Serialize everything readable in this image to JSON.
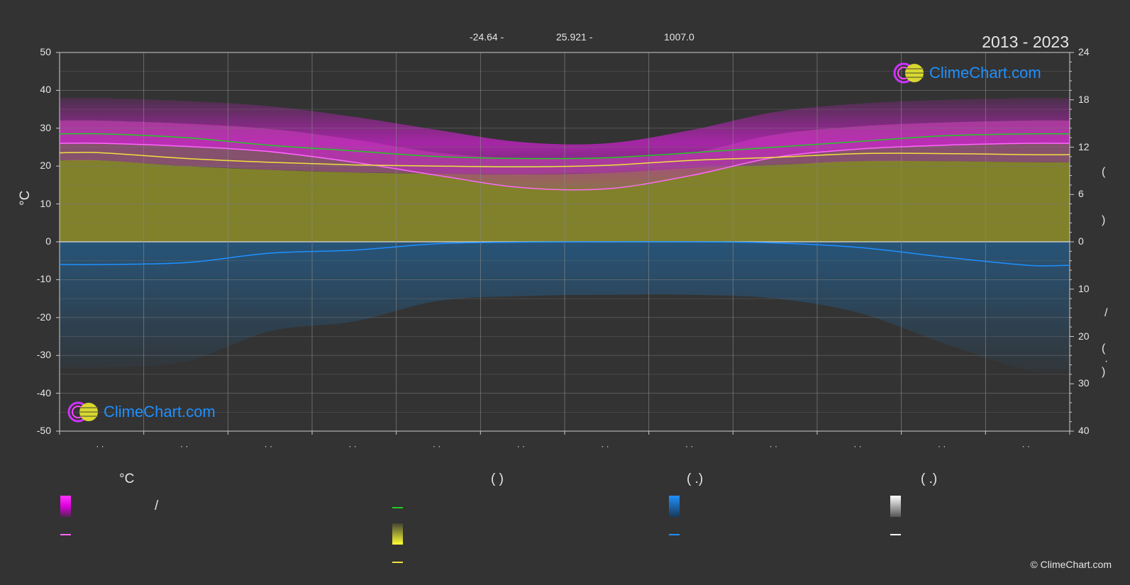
{
  "header": {
    "values": [
      "-24.64 -",
      "25.921 -",
      "1007.0"
    ],
    "period": "2013 - 2023"
  },
  "chart_data": {
    "type": "area",
    "x_months": 12,
    "y_left_ticks": [
      50,
      40,
      30,
      20,
      10,
      0,
      -10,
      -20,
      -30,
      -40,
      -50
    ],
    "y_left_label": "°C",
    "y_right_top_ticks": [
      24,
      18,
      12,
      6,
      0
    ],
    "y_right_bottom_ticks": [
      10,
      20,
      30,
      40
    ],
    "ylim": [
      -50,
      50
    ],
    "month_labels": [
      "· ·",
      "· ·",
      "· ·",
      "· ·",
      "· ·",
      "· ·",
      "· ·",
      "· ·",
      "· ·",
      "· ·",
      "· ·",
      "· ·"
    ],
    "series": [
      {
        "name": "",
        "color": "#22cc22",
        "values": [
          28.5,
          27.5,
          25.5,
          24.0,
          22.5,
          22.0,
          22.2,
          23.5,
          25.0,
          26.5,
          28.0,
          28.5
        ]
      },
      {
        "name": "",
        "color": "#ff66ff",
        "values": [
          26.0,
          25.2,
          23.8,
          21.0,
          17.5,
          14.3,
          14.0,
          17.5,
          22.3,
          24.5,
          25.5,
          26.0
        ]
      },
      {
        "name": "",
        "color": "#f0e040",
        "values": [
          23.5,
          22.0,
          21.0,
          20.3,
          20.0,
          19.8,
          20.2,
          21.5,
          22.3,
          23.3,
          23.3,
          23.0
        ]
      },
      {
        "name": "",
        "color": "#1e90ff",
        "values": [
          -6.0,
          -5.5,
          -3.0,
          -2.2,
          -0.5,
          -0.1,
          0.0,
          0.0,
          -0.3,
          -1.5,
          -4.0,
          -6.2
        ]
      }
    ]
  },
  "legend": {
    "temp_heading": "°C",
    "sun_heading": "(          )",
    "rain_heading": "(   .)",
    "snow_heading": "(   .)",
    "slash": "/",
    "colors": {
      "temp_range": "#dd22dd",
      "temp_mean": "#ff66ff",
      "daylight": "#22cc22",
      "sunshine": "#d8d830",
      "sunshine_line": "#f0e040",
      "rain": "#1e90ff",
      "snow": "#ffffff"
    }
  },
  "right_axis_marks": [
    "(",
    ")",
    "/",
    "(",
    "·",
    ")"
  ],
  "brand": {
    "name": "ClimeChart.com",
    "copyright": "© ClimeChart.com"
  }
}
